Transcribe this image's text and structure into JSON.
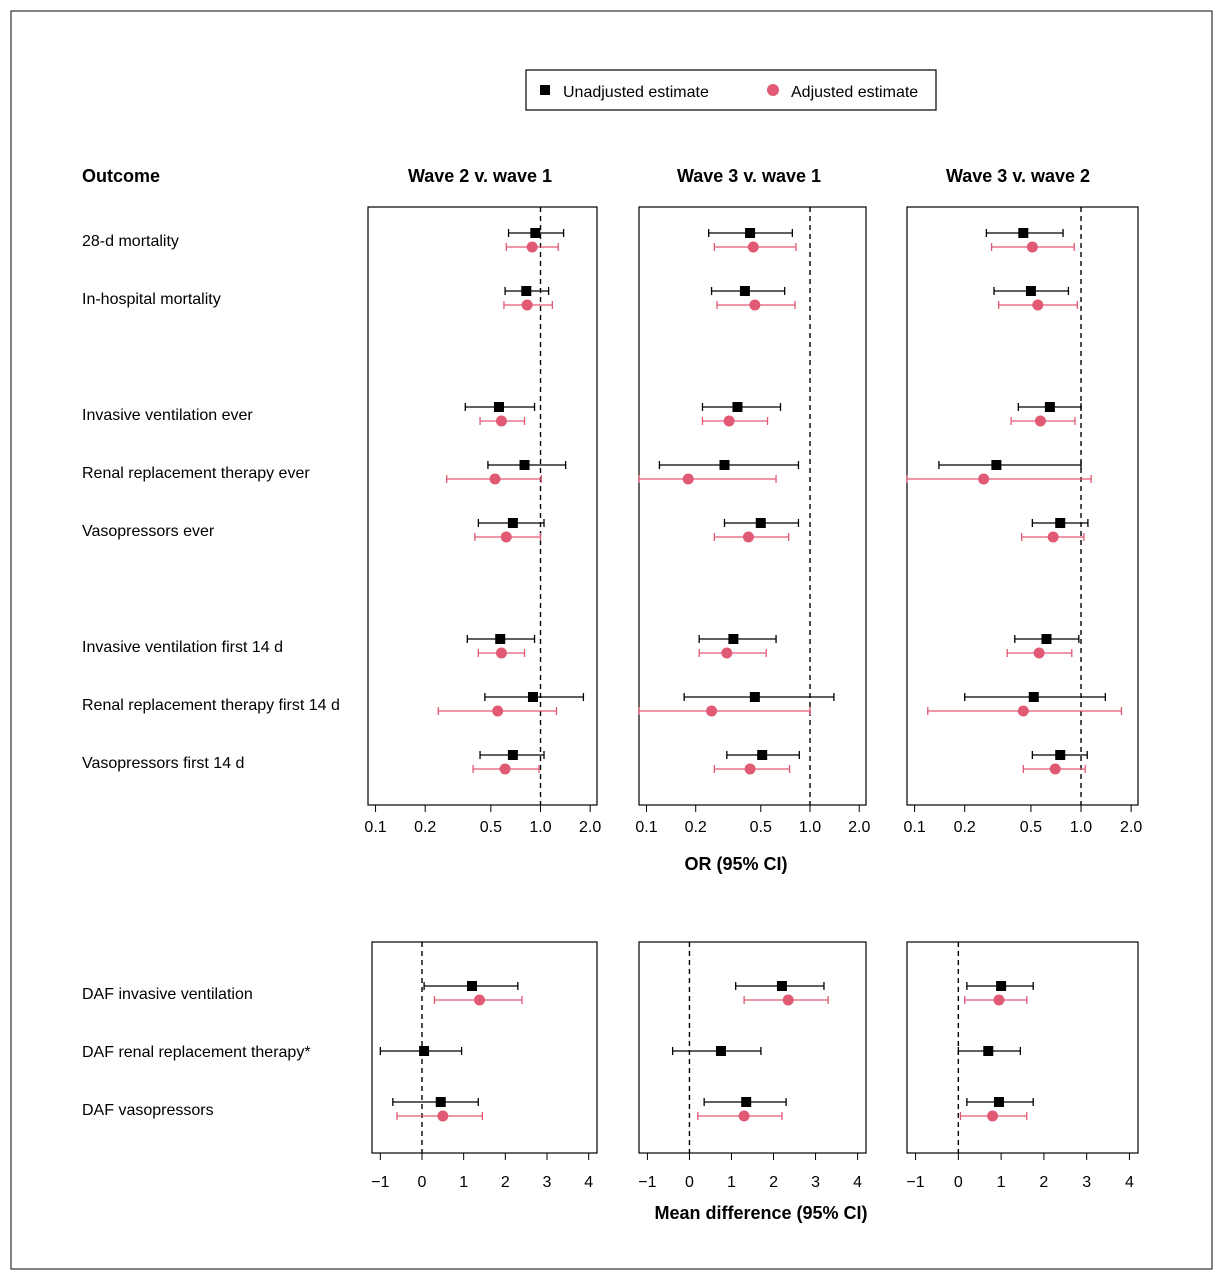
{
  "legend": {
    "unadjusted_label": "Unadjusted estimate",
    "adjusted_label": "Adjusted estimate",
    "unadjusted_color": "#000000",
    "adjusted_color": "#e05a73"
  },
  "header": {
    "outcome": "Outcome",
    "comparisons": [
      "Wave 2 v. wave 1",
      "Wave 3 v. wave 1",
      "Wave 3 v. wave 2"
    ]
  },
  "chart_data": [
    {
      "type": "forest",
      "scale": "log",
      "xlabel": "OR (95% CI)",
      "xlim": [
        0.09,
        2.2
      ],
      "ticks": [
        0.1,
        0.2,
        0.5,
        1.0,
        2.0
      ],
      "tick_labels": [
        "0.1",
        "0.2",
        "0.5",
        "1.0",
        "2.0"
      ],
      "reference": 1.0,
      "rows": [
        {
          "label": "28-d mortality",
          "slot": 0
        },
        {
          "label": "In-hospital mortality",
          "slot": 1
        },
        {
          "label": "Invasive ventilation ever",
          "slot": 3
        },
        {
          "label": "Renal replacement therapy ever",
          "slot": 4
        },
        {
          "label": "Vasopressors ever",
          "slot": 5
        },
        {
          "label": "Invasive ventilation first 14 d",
          "slot": 7
        },
        {
          "label": "Renal replacement therapy first 14 d",
          "slot": 8
        },
        {
          "label": "Vasopressors first 14 d",
          "slot": 9
        }
      ],
      "panels": [
        {
          "comparison": "Wave 2 v. wave 1",
          "unadjusted": [
            [
              0.93,
              0.64,
              1.38
            ],
            [
              0.82,
              0.61,
              1.12
            ],
            [
              0.56,
              0.35,
              0.92
            ],
            [
              0.8,
              0.48,
              1.42
            ],
            [
              0.68,
              0.42,
              1.05
            ],
            [
              0.57,
              0.36,
              0.92
            ],
            [
              0.9,
              0.46,
              1.82
            ],
            [
              0.68,
              0.43,
              1.05
            ]
          ],
          "adjusted": [
            [
              0.89,
              0.62,
              1.28
            ],
            [
              0.83,
              0.6,
              1.18
            ],
            [
              0.58,
              0.43,
              0.8
            ],
            [
              0.53,
              0.27,
              1.01
            ],
            [
              0.62,
              0.4,
              1.0
            ],
            [
              0.58,
              0.42,
              0.8
            ],
            [
              0.55,
              0.24,
              1.25
            ],
            [
              0.61,
              0.39,
              0.98
            ]
          ]
        },
        {
          "comparison": "Wave 3 v. wave 1",
          "unadjusted": [
            [
              0.43,
              0.24,
              0.78
            ],
            [
              0.4,
              0.25,
              0.7
            ],
            [
              0.36,
              0.22,
              0.66
            ],
            [
              0.3,
              0.12,
              0.85
            ],
            [
              0.5,
              0.3,
              0.85
            ],
            [
              0.34,
              0.21,
              0.62
            ],
            [
              0.46,
              0.17,
              1.4
            ],
            [
              0.51,
              0.31,
              0.86
            ]
          ],
          "adjusted": [
            [
              0.45,
              0.26,
              0.82
            ],
            [
              0.46,
              0.27,
              0.81
            ],
            [
              0.32,
              0.22,
              0.55
            ],
            [
              0.18,
              0.09,
              0.62
            ],
            [
              0.42,
              0.26,
              0.74
            ],
            [
              0.31,
              0.21,
              0.54
            ],
            [
              0.25,
              0.09,
              1.0
            ],
            [
              0.43,
              0.26,
              0.75
            ]
          ]
        },
        {
          "comparison": "Wave 3 v. wave 2",
          "unadjusted": [
            [
              0.45,
              0.27,
              0.78
            ],
            [
              0.5,
              0.3,
              0.84
            ],
            [
              0.65,
              0.42,
              1.0
            ],
            [
              0.31,
              0.14,
              1.0
            ],
            [
              0.75,
              0.51,
              1.1
            ],
            [
              0.62,
              0.4,
              0.97
            ],
            [
              0.52,
              0.2,
              1.4
            ],
            [
              0.75,
              0.51,
              1.09
            ]
          ],
          "adjusted": [
            [
              0.51,
              0.29,
              0.91
            ],
            [
              0.55,
              0.32,
              0.95
            ],
            [
              0.57,
              0.38,
              0.92
            ],
            [
              0.26,
              0.09,
              1.15
            ],
            [
              0.68,
              0.44,
              1.04
            ],
            [
              0.56,
              0.36,
              0.88
            ],
            [
              0.45,
              0.12,
              1.75
            ],
            [
              0.7,
              0.45,
              1.06
            ]
          ]
        }
      ]
    },
    {
      "type": "forest",
      "scale": "linear",
      "xlabel": "Mean difference (95% CI)",
      "xlim": [
        -1.2,
        4.2
      ],
      "ticks": [
        -1,
        0,
        1,
        2,
        3,
        4
      ],
      "tick_labels": [
        "−1",
        "0",
        "1",
        "2",
        "3",
        "4"
      ],
      "reference": 0,
      "rows": [
        {
          "label": "DAF invasive ventilation",
          "slot": 0
        },
        {
          "label": "DAF renal replacement therapy*",
          "slot": 1
        },
        {
          "label": "DAF vasopressors",
          "slot": 2
        }
      ],
      "panels": [
        {
          "comparison": "Wave 2 v. wave 1",
          "unadjusted": [
            [
              1.2,
              0.05,
              2.3
            ],
            [
              0.05,
              -1.0,
              0.95
            ],
            [
              0.45,
              -0.7,
              1.35
            ]
          ],
          "adjusted": [
            [
              1.38,
              0.3,
              2.4
            ],
            null,
            [
              0.5,
              -0.6,
              1.45
            ]
          ]
        },
        {
          "comparison": "Wave 3 v. wave 1",
          "unadjusted": [
            [
              2.2,
              1.1,
              3.2
            ],
            [
              0.75,
              -0.4,
              1.7
            ],
            [
              1.35,
              0.35,
              2.3
            ]
          ],
          "adjusted": [
            [
              2.35,
              1.3,
              3.3
            ],
            null,
            [
              1.3,
              0.2,
              2.2
            ]
          ]
        },
        {
          "comparison": "Wave 3 v. wave 2",
          "unadjusted": [
            [
              1.0,
              0.2,
              1.75
            ],
            [
              0.7,
              0.0,
              1.45
            ],
            [
              0.95,
              0.2,
              1.75
            ]
          ],
          "adjusted": [
            [
              0.95,
              0.15,
              1.6
            ],
            null,
            [
              0.8,
              0.05,
              1.6
            ]
          ]
        }
      ]
    }
  ]
}
